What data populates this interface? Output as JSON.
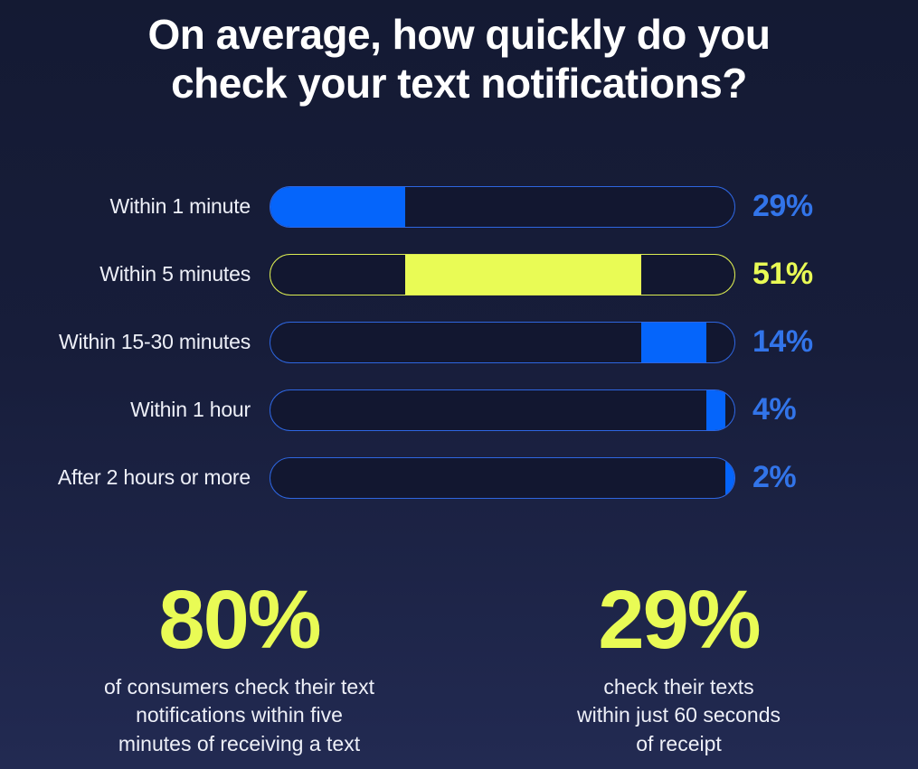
{
  "title": "On average, how quickly do you\ncheck your text notifications?",
  "colors": {
    "background_top": "#141a33",
    "background_bottom": "#222a52",
    "blue": "#0565fb",
    "lime": "#e9fb55",
    "blue_border": "#2e66e0",
    "lime_border": "#dced52",
    "blue_text": "#3274e9",
    "lime_text": "#e9fb55",
    "track_fill": "#121730",
    "title_text": "#ffffff",
    "label_text": "#eef0f8"
  },
  "chart_data": {
    "type": "bar",
    "orientation": "horizontal",
    "style": "waterfall-pill",
    "title": "On average, how quickly do you check your text notifications?",
    "categories": [
      "Within 1 minute",
      "Within 5 minutes",
      "Within 15-30 minutes",
      "Within 1 hour",
      "After 2 hours or more"
    ],
    "values": [
      29,
      51,
      14,
      4,
      2
    ],
    "value_labels": [
      "29%",
      "51%",
      "14%",
      "4%",
      "2%"
    ],
    "bar_colors": [
      "blue",
      "lime",
      "blue",
      "blue",
      "blue"
    ],
    "cumulative_starts": [
      0,
      29,
      80,
      94,
      98
    ],
    "xlim": [
      0,
      100
    ],
    "grid": false,
    "legend": false
  },
  "stats": [
    {
      "value": "80%",
      "caption": "of consumers check their text\nnotifications within five\nminutes of receiving a text"
    },
    {
      "value": "29%",
      "caption": "check their texts\nwithin just 60 seconds\nof receipt"
    }
  ]
}
